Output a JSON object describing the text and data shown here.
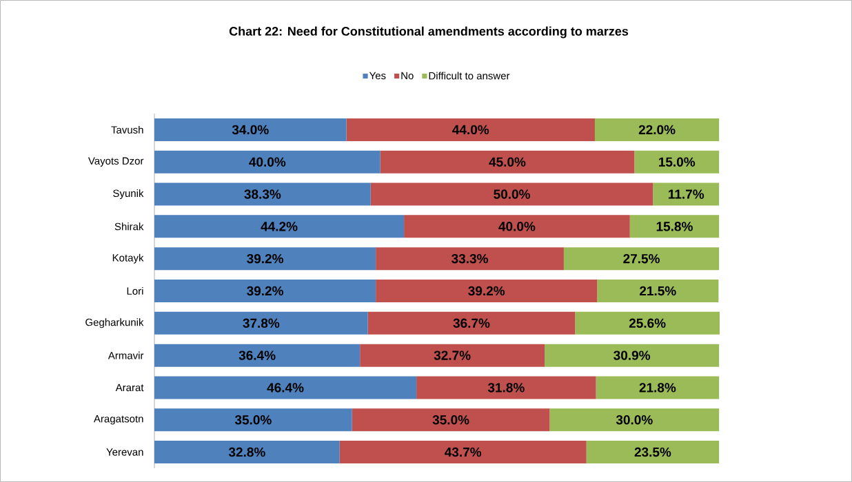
{
  "chart_data": {
    "type": "bar",
    "orientation": "horizontal",
    "stacked": true,
    "title": "Chart 22: Need for Constitutional amendments according to marzes",
    "categories": [
      "Tavush",
      "Vayots Dzor",
      "Syunik",
      "Shirak",
      "Kotayk",
      "Lori",
      "Gegharkunik",
      "Armavir",
      "Ararat",
      "Aragatsotn",
      "Yerevan"
    ],
    "series": [
      {
        "name": "Yes",
        "color": "#4f81bd",
        "values": [
          34.0,
          40.0,
          38.3,
          44.2,
          39.2,
          39.2,
          37.8,
          36.4,
          46.4,
          35.0,
          32.8
        ],
        "value_labels": [
          "34.0%",
          "40.0%",
          "38.3%",
          "44.2%",
          "39.2%",
          "39.2%",
          "37.8%",
          "36.4%",
          "46.4%",
          "35.0%",
          "32.8%"
        ]
      },
      {
        "name": "No",
        "color": "#c0504d",
        "values": [
          44.0,
          45.0,
          50.0,
          40.0,
          33.3,
          39.2,
          36.7,
          32.7,
          31.8,
          35.0,
          43.7
        ],
        "value_labels": [
          "44.0%",
          "45.0%",
          "50.0%",
          "40.0%",
          "33.3%",
          "39.2%",
          "36.7%",
          "32.7%",
          "31.8%",
          "35.0%",
          "43.7%"
        ]
      },
      {
        "name": "Difficult to answer",
        "color": "#9bbb59",
        "values": [
          22.0,
          15.0,
          11.7,
          15.8,
          27.5,
          21.5,
          25.6,
          30.9,
          21.8,
          30.0,
          23.5
        ],
        "value_labels": [
          "22.0%",
          "15.0%",
          "11.7%",
          "15.8%",
          "27.5%",
          "21.5%",
          "25.6%",
          "30.9%",
          "21.8%",
          "30.0%",
          "23.5%"
        ]
      }
    ],
    "legend": "top"
  }
}
